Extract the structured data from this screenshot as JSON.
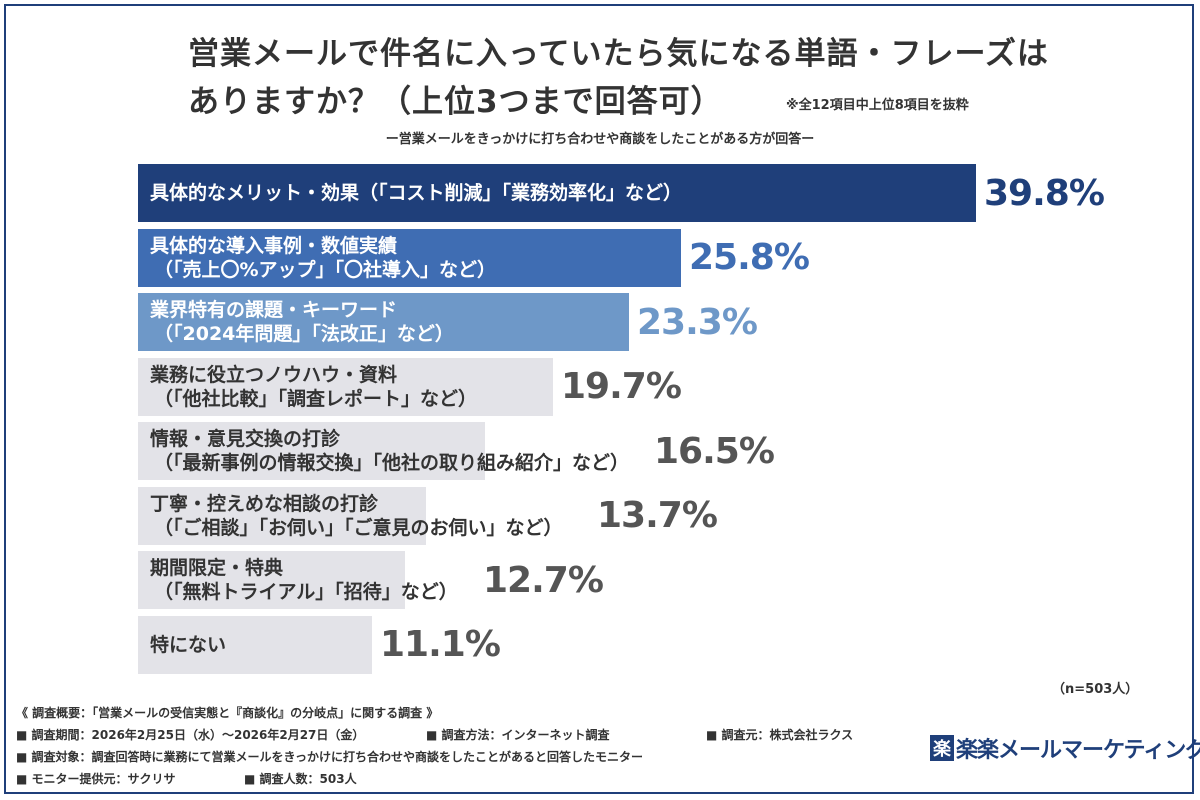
{
  "title_line1": "営業メールで件名に入っていたら気になる単語・フレーズは",
  "title_line2": "ありますか？（上位3つまで回答可）",
  "note": "※全12項目中上位8項目を抜粋",
  "subtitle": "ー営業メールをきっかけに打ち合わせや商談をしたことがある方が回答ー",
  "n_label": "（n=503人）",
  "chart_data": {
    "type": "bar",
    "orientation": "horizontal",
    "unit": "%",
    "categories": [
      [
        "具体的なメリット・効果（「コスト削減」「業務効率化」など）"
      ],
      [
        "具体的な導入事例・数値実績",
        "（「売上〇%アップ」「〇社導入」など）"
      ],
      [
        "業界特有の課題・キーワード",
        "（「2024年問題」「法改正」など）"
      ],
      [
        "業務に役立つノウハウ・資料",
        "（「他社比較」「調査レポート」など）"
      ],
      [
        "情報・意見交換の打診",
        "（「最新事例の情報交換」「他社の取り組み紹介」など）"
      ],
      [
        "丁寧・控えめな相談の打診",
        "（「ご相談」「お伺い」「ご意見のお伺い」など）"
      ],
      [
        "期間限定・特典",
        "（「無料トライアル」「招待」など）"
      ],
      [
        "特にない"
      ]
    ],
    "values": [
      39.8,
      25.8,
      23.3,
      19.7,
      16.5,
      13.7,
      12.7,
      11.1
    ],
    "value_labels": [
      "39.8%",
      "25.8%",
      "23.3%",
      "19.7%",
      "16.5%",
      "13.7%",
      "12.7%",
      "11.1%"
    ],
    "bar_colors": [
      "#1f3f7a",
      "#3f6db3",
      "#6e98c8",
      "#e3e3e8",
      "#e3e3e8",
      "#e3e3e8",
      "#e3e3e8",
      "#e3e3e8"
    ],
    "text_colors": [
      "#ffffff",
      "#ffffff",
      "#ffffff",
      "#333333",
      "#333333",
      "#333333",
      "#333333",
      "#333333"
    ],
    "value_colors": [
      "#1f3f7a",
      "#3f6db3",
      "#6e98c8",
      "#555555",
      "#555555",
      "#555555",
      "#555555",
      "#555555"
    ],
    "xlim": [
      0,
      39.8
    ],
    "grid": false,
    "legend": "none"
  },
  "footer": {
    "overview": "《 調査概要：「営業メールの受信実態と『商談化』の分岐点」に関する調査 》",
    "period": "■ 調査期間：2026年2月25日（水）〜2026年2月27日（金）",
    "method": "■ 調査方法：インターネット調査",
    "source": "■ 調査元：株式会社ラクス",
    "target": "■ 調査対象：調査回答時に業務にて営業メールをきっかけに打ち合わせや商談をしたことがあると回答したモニター",
    "provider": "■ モニター提供元：サクリサ",
    "count": "■ 調査人数：503人"
  },
  "logo": {
    "mark": "楽",
    "text": "楽楽メールマーケティング"
  }
}
